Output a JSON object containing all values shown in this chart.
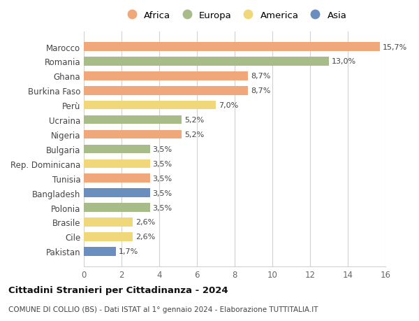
{
  "countries": [
    "Marocco",
    "Romania",
    "Ghana",
    "Burkina Faso",
    "Perù",
    "Ucraina",
    "Nigeria",
    "Bulgaria",
    "Rep. Dominicana",
    "Tunisia",
    "Bangladesh",
    "Polonia",
    "Brasile",
    "Cile",
    "Pakistan"
  ],
  "values": [
    15.7,
    13.0,
    8.7,
    8.7,
    7.0,
    5.2,
    5.2,
    3.5,
    3.5,
    3.5,
    3.5,
    3.5,
    2.6,
    2.6,
    1.7
  ],
  "labels": [
    "15,7%",
    "13,0%",
    "8,7%",
    "8,7%",
    "7,0%",
    "5,2%",
    "5,2%",
    "3,5%",
    "3,5%",
    "3,5%",
    "3,5%",
    "3,5%",
    "2,6%",
    "2,6%",
    "1,7%"
  ],
  "colors": [
    "#F0A87A",
    "#A8BC8A",
    "#F0A87A",
    "#F0A87A",
    "#F0D87A",
    "#A8BC8A",
    "#F0A87A",
    "#A8BC8A",
    "#F0D87A",
    "#F0A87A",
    "#6A8FBF",
    "#A8BC8A",
    "#F0D87A",
    "#F0D87A",
    "#6A8FBF"
  ],
  "continent_colors": {
    "Africa": "#F0A87A",
    "Europa": "#A8BC8A",
    "America": "#F0D87A",
    "Asia": "#6A8FBF"
  },
  "legend_order": [
    "Africa",
    "Europa",
    "America",
    "Asia"
  ],
  "xlim": [
    0,
    16
  ],
  "xticks": [
    0,
    2,
    4,
    6,
    8,
    10,
    12,
    14,
    16
  ],
  "title_main": "Cittadini Stranieri per Cittadinanza - 2024",
  "title_sub": "COMUNE DI COLLIO (BS) - Dati ISTAT al 1° gennaio 2024 - Elaborazione TUTTITALIA.IT",
  "bg_color": "#FFFFFF",
  "grid_color": "#D0D0D0",
  "bar_height": 0.6
}
